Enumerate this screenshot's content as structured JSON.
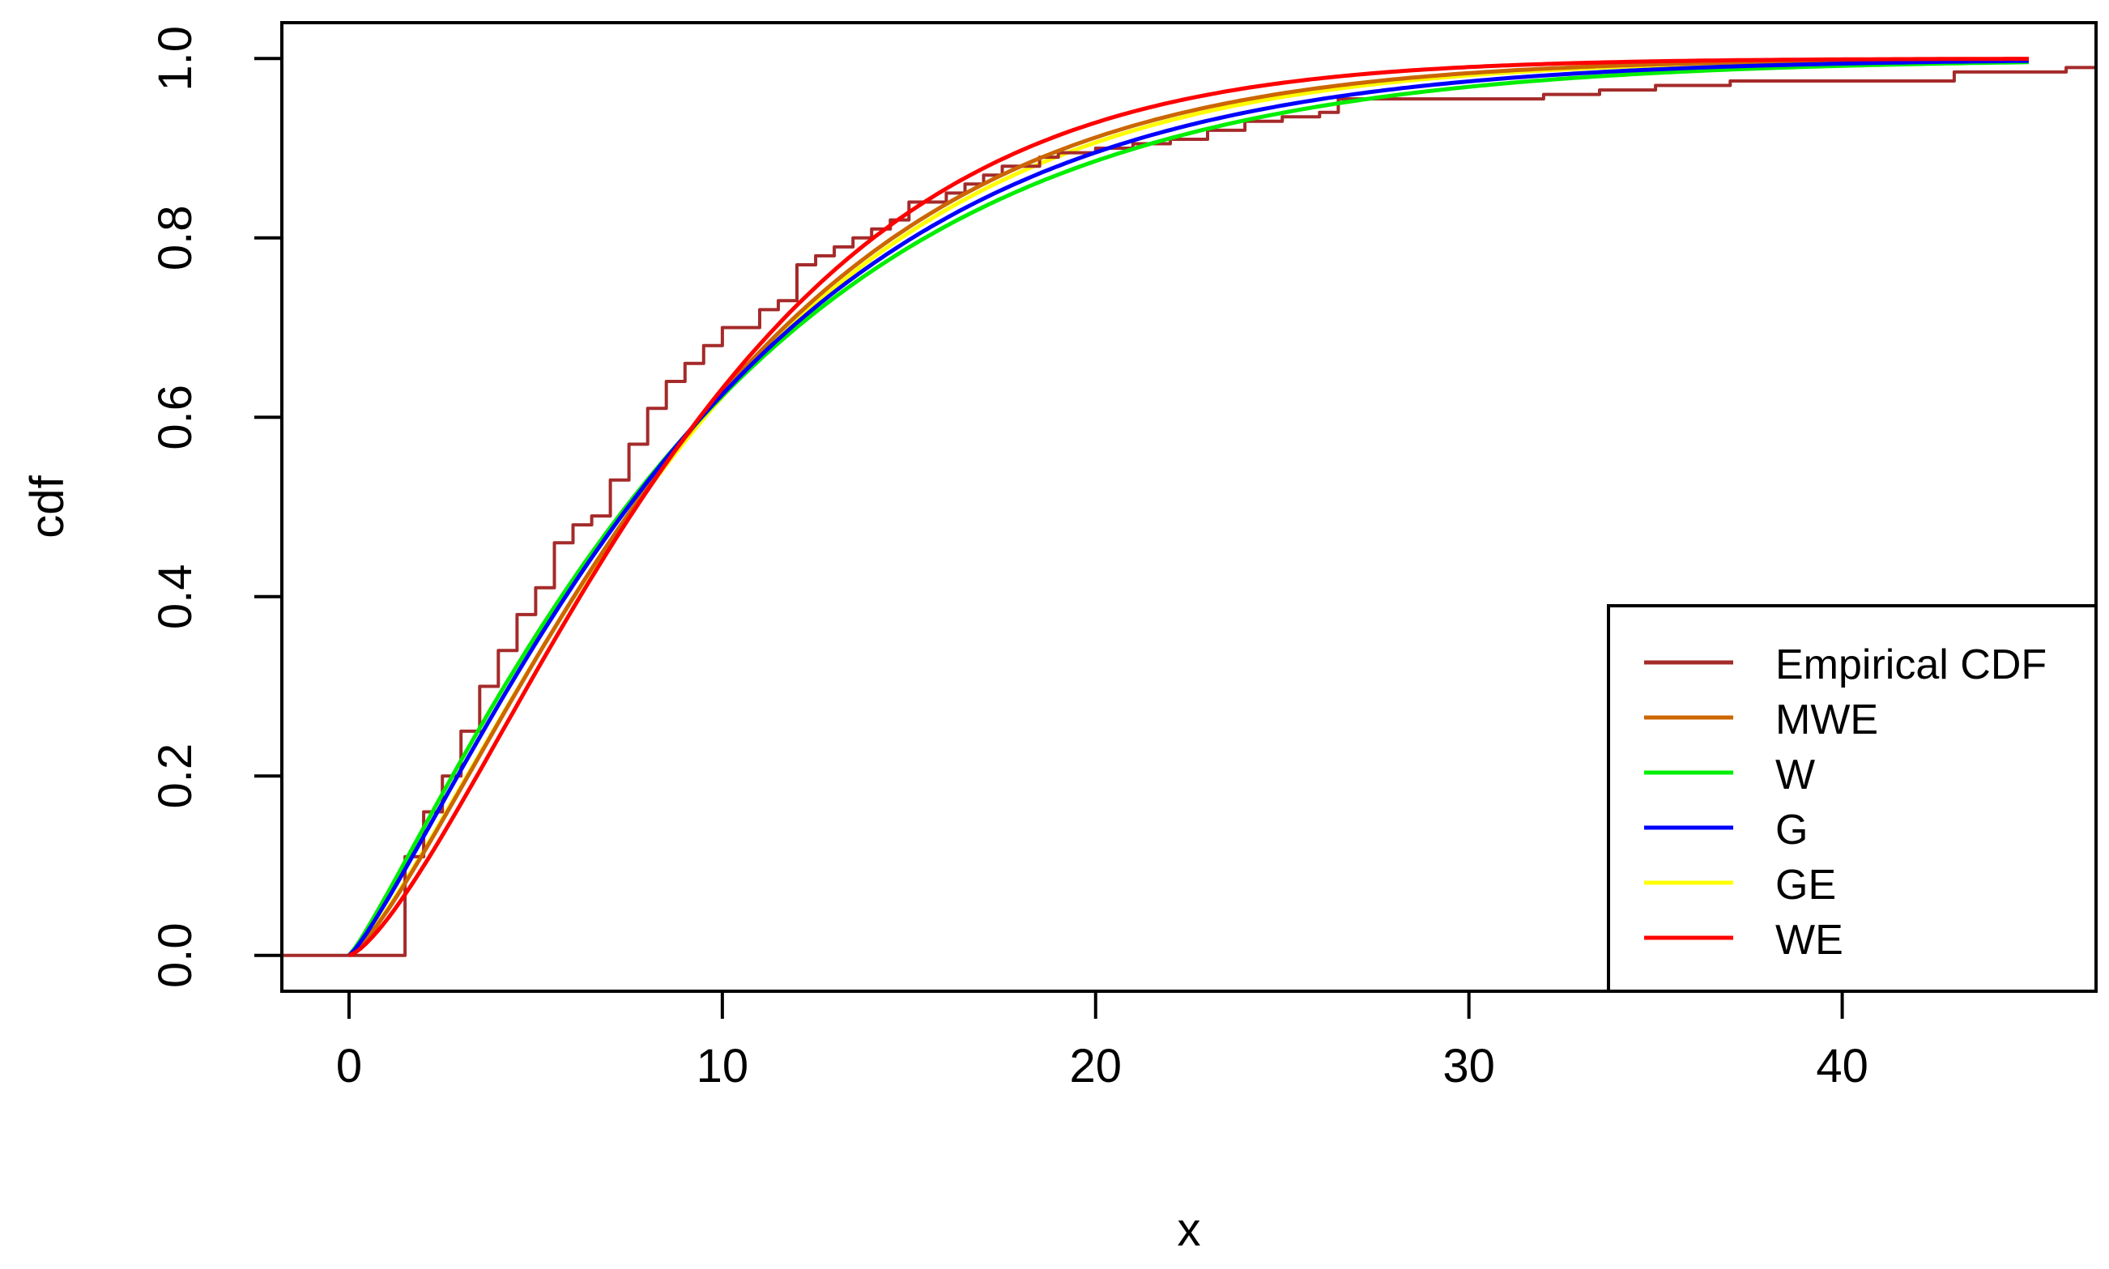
{
  "chart_data": {
    "type": "line",
    "xlabel": "x",
    "ylabel": "cdf",
    "xlim": [
      -1.8,
      46.8
    ],
    "ylim": [
      -0.04,
      1.04
    ],
    "x_ticks": [
      0,
      10,
      20,
      30,
      40
    ],
    "x_tick_labels": [
      "0",
      "10",
      "20",
      "30",
      "40"
    ],
    "y_ticks": [
      0,
      0.2,
      0.4,
      0.6,
      0.8,
      1.0
    ],
    "y_tick_labels": [
      "0.0",
      "0.2",
      "0.4",
      "0.6",
      "0.8",
      "1.0"
    ],
    "grid": false,
    "legend_position": "bottom-right",
    "series": [
      {
        "name": "Empirical CDF",
        "kind": "step",
        "color": "#a52a2a",
        "x": [
          -1.8,
          0.0,
          1.5,
          2.0,
          2.5,
          3.0,
          3.5,
          4.0,
          4.5,
          5.0,
          5.5,
          6.0,
          6.5,
          7.0,
          7.5,
          8.0,
          8.5,
          9.0,
          9.5,
          10.0,
          11.0,
          11.5,
          12.0,
          12.5,
          13.0,
          13.5,
          14.0,
          14.5,
          15.0,
          16.0,
          16.5,
          17.0,
          17.5,
          18.5,
          19.0,
          20.0,
          21.0,
          22.0,
          23.0,
          24.0,
          25.0,
          26.0,
          26.5,
          28.0,
          30.0,
          32.0,
          33.5,
          35.0,
          37.0,
          40.0,
          43.0,
          46.0,
          46.8
        ],
        "y": [
          0.0,
          0.0,
          0.11,
          0.16,
          0.2,
          0.25,
          0.3,
          0.34,
          0.38,
          0.41,
          0.46,
          0.48,
          0.49,
          0.53,
          0.57,
          0.61,
          0.64,
          0.66,
          0.68,
          0.7,
          0.72,
          0.73,
          0.77,
          0.78,
          0.79,
          0.8,
          0.81,
          0.82,
          0.84,
          0.85,
          0.86,
          0.87,
          0.88,
          0.89,
          0.895,
          0.9,
          0.905,
          0.91,
          0.92,
          0.93,
          0.935,
          0.94,
          0.955,
          0.955,
          0.955,
          0.96,
          0.965,
          0.97,
          0.975,
          0.975,
          0.985,
          0.99,
          0.99
        ]
      },
      {
        "name": "MWE",
        "kind": "weibull",
        "color": "#cc6600",
        "k": 1.3,
        "lambda": 10.1
      },
      {
        "name": "W",
        "kind": "weibull",
        "color": "#00ee00",
        "k": 1.15,
        "lambda": 10.2
      },
      {
        "name": "G",
        "kind": "weibull",
        "color": "#0000ff",
        "k": 1.2,
        "lambda": 10.15
      },
      {
        "name": "GE",
        "kind": "weibull",
        "color": "#ffff00",
        "k": 1.28,
        "lambda": 10.2
      },
      {
        "name": "WE",
        "kind": "weibull",
        "color": "#ff0000",
        "k": 1.4,
        "lambda": 10.0
      }
    ]
  }
}
